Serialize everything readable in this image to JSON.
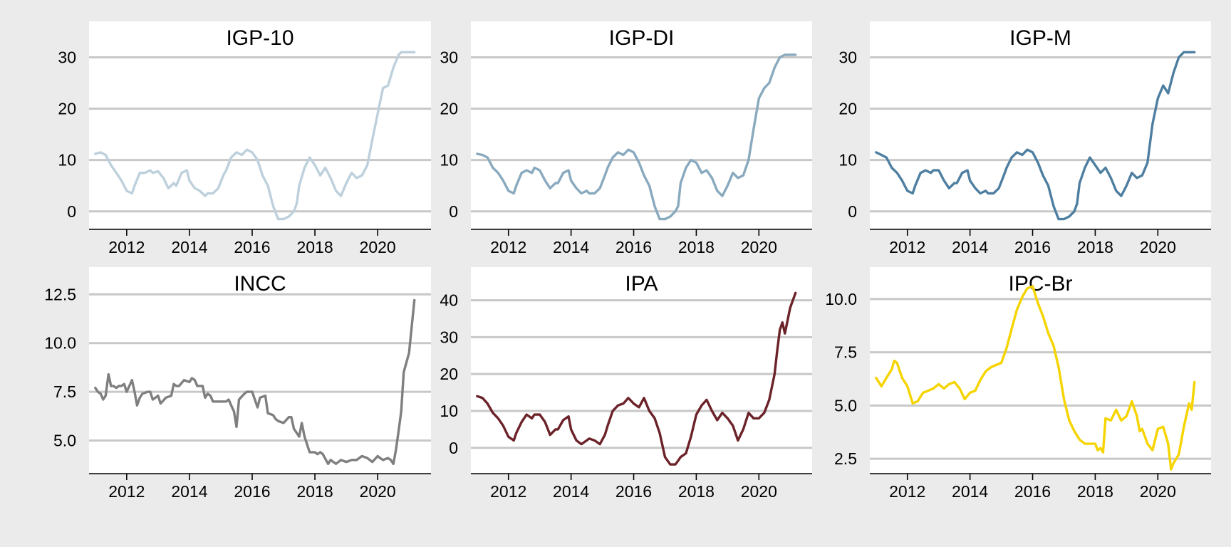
{
  "chart_data": {
    "type": "line",
    "x_range": [
      2010.8,
      2021.7
    ],
    "x_ticks": [
      2012,
      2014,
      2016,
      2018,
      2020
    ],
    "x_tick_labels": [
      "2012",
      "2014",
      "2016",
      "2018",
      "2020"
    ],
    "grid": "horizontal",
    "panels": [
      {
        "title": "IGP-10",
        "color": "#bdd0dc",
        "ylim": [
          -3.5,
          37
        ],
        "y_ticks": [
          0,
          10,
          20,
          30
        ],
        "y_tick_labels": [
          "0",
          "10",
          "20",
          "30"
        ],
        "series": {
          "x": [
            2011.0,
            2011.17,
            2011.33,
            2011.5,
            2011.67,
            2011.83,
            2012.0,
            2012.17,
            2012.25,
            2012.42,
            2012.58,
            2012.75,
            2012.83,
            2013.0,
            2013.17,
            2013.33,
            2013.5,
            2013.58,
            2013.75,
            2013.92,
            2014.0,
            2014.17,
            2014.33,
            2014.5,
            2014.58,
            2014.75,
            2014.92,
            2015.08,
            2015.17,
            2015.33,
            2015.5,
            2015.67,
            2015.83,
            2016.0,
            2016.17,
            2016.33,
            2016.5,
            2016.67,
            2016.83,
            2017.0,
            2017.17,
            2017.33,
            2017.42,
            2017.5,
            2017.67,
            2017.83,
            2018.0,
            2018.17,
            2018.33,
            2018.5,
            2018.67,
            2018.83,
            2019.0,
            2019.17,
            2019.33,
            2019.5,
            2019.67,
            2019.83,
            2020.0,
            2020.17,
            2020.33,
            2020.5,
            2020.67,
            2020.75,
            2020.83,
            2020.92,
            2021.0,
            2021.08,
            2021.17
          ],
          "y": [
            11.2,
            11.5,
            11.0,
            9.0,
            7.5,
            6.0,
            4.0,
            3.5,
            5.0,
            7.5,
            7.5,
            8.0,
            7.5,
            7.8,
            6.5,
            4.5,
            5.5,
            5.0,
            7.5,
            8.0,
            6.0,
            4.5,
            4.0,
            3.0,
            3.5,
            3.5,
            4.5,
            7.0,
            8.0,
            10.5,
            11.5,
            11.0,
            12.0,
            11.5,
            10.0,
            7.0,
            5.0,
            1.0,
            -1.5,
            -1.5,
            -1.0,
            0.0,
            1.5,
            5.0,
            8.5,
            10.5,
            9.0,
            7.0,
            8.5,
            6.5,
            4.0,
            3.0,
            5.5,
            7.5,
            6.5,
            7.0,
            9.0,
            14.0,
            19.0,
            24.0,
            24.5,
            28.0,
            30.5,
            31.0,
            31.0,
            31.0,
            31.0,
            31.0,
            31.0
          ]
        }
      },
      {
        "title": "IGP-DI",
        "color": "#89a9be",
        "ylim": [
          -3.5,
          37
        ],
        "y_ticks": [
          0,
          10,
          20,
          30
        ],
        "y_tick_labels": [
          "0",
          "10",
          "20",
          "30"
        ],
        "series": {
          "x": [
            2011.0,
            2011.17,
            2011.33,
            2011.5,
            2011.67,
            2011.83,
            2012.0,
            2012.17,
            2012.25,
            2012.42,
            2012.58,
            2012.75,
            2012.83,
            2013.0,
            2013.17,
            2013.33,
            2013.5,
            2013.58,
            2013.75,
            2013.92,
            2014.0,
            2014.17,
            2014.33,
            2014.5,
            2014.58,
            2014.75,
            2014.92,
            2015.08,
            2015.17,
            2015.33,
            2015.5,
            2015.67,
            2015.83,
            2016.0,
            2016.17,
            2016.33,
            2016.5,
            2016.67,
            2016.83,
            2017.0,
            2017.17,
            2017.33,
            2017.42,
            2017.5,
            2017.67,
            2017.83,
            2018.0,
            2018.17,
            2018.33,
            2018.5,
            2018.67,
            2018.83,
            2019.0,
            2019.17,
            2019.33,
            2019.5,
            2019.67,
            2019.83,
            2020.0,
            2020.17,
            2020.33,
            2020.5,
            2020.67,
            2020.83,
            2021.0,
            2021.17
          ],
          "y": [
            11.2,
            11.0,
            10.5,
            8.5,
            7.5,
            6.0,
            4.0,
            3.5,
            5.0,
            7.5,
            8.0,
            7.5,
            8.5,
            8.0,
            6.0,
            4.5,
            5.5,
            5.5,
            7.5,
            8.0,
            6.0,
            4.5,
            3.5,
            4.0,
            3.5,
            3.5,
            4.5,
            7.0,
            8.5,
            10.5,
            11.5,
            11.0,
            12.0,
            11.5,
            9.5,
            7.0,
            5.0,
            1.0,
            -1.5,
            -1.5,
            -1.0,
            0.0,
            1.0,
            5.5,
            8.5,
            10.0,
            9.5,
            7.5,
            8.0,
            6.5,
            4.0,
            3.0,
            5.0,
            7.5,
            6.5,
            7.0,
            10.0,
            16.0,
            22.0,
            24.0,
            25.0,
            28.0,
            30.0,
            30.5,
            30.5,
            30.5
          ]
        }
      },
      {
        "title": "IGP-M",
        "color": "#4e7ea0",
        "ylim": [
          -3.5,
          37
        ],
        "y_ticks": [
          0,
          10,
          20,
          30
        ],
        "y_tick_labels": [
          "0",
          "10",
          "20",
          "30"
        ],
        "series": {
          "x": [
            2011.0,
            2011.17,
            2011.33,
            2011.5,
            2011.67,
            2011.83,
            2012.0,
            2012.17,
            2012.25,
            2012.42,
            2012.58,
            2012.75,
            2012.83,
            2013.0,
            2013.17,
            2013.33,
            2013.5,
            2013.58,
            2013.75,
            2013.92,
            2014.0,
            2014.17,
            2014.33,
            2014.5,
            2014.58,
            2014.75,
            2014.92,
            2015.08,
            2015.17,
            2015.33,
            2015.5,
            2015.67,
            2015.83,
            2016.0,
            2016.17,
            2016.33,
            2016.5,
            2016.67,
            2016.83,
            2017.0,
            2017.17,
            2017.33,
            2017.42,
            2017.5,
            2017.67,
            2017.83,
            2018.0,
            2018.17,
            2018.33,
            2018.5,
            2018.67,
            2018.83,
            2019.0,
            2019.17,
            2019.33,
            2019.5,
            2019.67,
            2019.83,
            2020.0,
            2020.17,
            2020.33,
            2020.5,
            2020.67,
            2020.83,
            2021.0,
            2021.17
          ],
          "y": [
            11.5,
            11.0,
            10.5,
            8.5,
            7.5,
            6.0,
            4.0,
            3.5,
            5.0,
            7.5,
            8.0,
            7.5,
            8.0,
            8.0,
            6.0,
            4.5,
            5.5,
            5.5,
            7.5,
            8.0,
            6.0,
            4.5,
            3.5,
            4.0,
            3.5,
            3.5,
            4.5,
            7.0,
            8.5,
            10.5,
            11.5,
            11.0,
            12.0,
            11.5,
            9.5,
            7.0,
            5.0,
            1.0,
            -1.5,
            -1.5,
            -1.0,
            0.0,
            1.5,
            5.5,
            8.5,
            10.5,
            9.0,
            7.5,
            8.5,
            6.5,
            4.0,
            3.0,
            5.0,
            7.5,
            6.5,
            7.0,
            9.5,
            17.0,
            22.0,
            24.5,
            23.0,
            27.0,
            30.0,
            31.0,
            31.0,
            31.0
          ]
        }
      },
      {
        "title": "INCC",
        "color": "#7f7f7f",
        "ylim": [
          3.3,
          13.9
        ],
        "y_ticks": [
          5.0,
          7.5,
          10.0,
          12.5
        ],
        "y_tick_labels": [
          "5.0",
          "7.5",
          "10.0",
          "12.5"
        ],
        "series": {
          "x": [
            2011.0,
            2011.08,
            2011.17,
            2011.25,
            2011.33,
            2011.42,
            2011.5,
            2011.58,
            2011.67,
            2011.75,
            2011.83,
            2011.92,
            2012.0,
            2012.17,
            2012.25,
            2012.33,
            2012.42,
            2012.5,
            2012.67,
            2012.75,
            2012.83,
            2013.0,
            2013.08,
            2013.25,
            2013.42,
            2013.5,
            2013.58,
            2013.67,
            2013.83,
            2014.0,
            2014.08,
            2014.17,
            2014.25,
            2014.42,
            2014.5,
            2014.58,
            2014.67,
            2014.75,
            2015.0,
            2015.17,
            2015.25,
            2015.33,
            2015.42,
            2015.5,
            2015.58,
            2015.75,
            2015.83,
            2016.0,
            2016.17,
            2016.25,
            2016.42,
            2016.5,
            2016.67,
            2016.75,
            2016.83,
            2017.0,
            2017.17,
            2017.25,
            2017.33,
            2017.5,
            2017.58,
            2017.67,
            2017.83,
            2018.0,
            2018.08,
            2018.17,
            2018.25,
            2018.42,
            2018.5,
            2018.67,
            2018.83,
            2019.0,
            2019.17,
            2019.33,
            2019.5,
            2019.67,
            2019.75,
            2019.83,
            2020.0,
            2020.08,
            2020.17,
            2020.33,
            2020.42,
            2020.5,
            2020.58,
            2020.67,
            2020.75,
            2020.83,
            2021.0,
            2021.17
          ],
          "y": [
            7.7,
            7.5,
            7.4,
            7.1,
            7.3,
            8.4,
            7.8,
            7.8,
            7.7,
            7.8,
            7.8,
            7.9,
            7.5,
            8.1,
            7.5,
            6.8,
            7.2,
            7.4,
            7.5,
            7.5,
            7.1,
            7.3,
            6.9,
            7.2,
            7.3,
            7.9,
            7.8,
            7.8,
            8.1,
            8.0,
            8.2,
            8.1,
            7.8,
            7.8,
            7.2,
            7.4,
            7.3,
            7.0,
            7.0,
            7.0,
            7.1,
            6.8,
            6.5,
            5.7,
            7.1,
            7.4,
            7.5,
            7.5,
            6.7,
            7.2,
            7.3,
            6.4,
            6.3,
            6.1,
            6.0,
            5.9,
            6.2,
            6.2,
            5.6,
            5.2,
            5.9,
            5.2,
            4.4,
            4.4,
            4.3,
            4.4,
            4.3,
            3.8,
            4.0,
            3.8,
            4.0,
            3.9,
            4.0,
            4.0,
            4.2,
            4.1,
            4.0,
            3.9,
            4.2,
            4.1,
            4.0,
            4.1,
            4.0,
            3.8,
            4.5,
            5.5,
            6.5,
            8.5,
            9.5,
            12.2
          ]
        }
      },
      {
        "title": "IPA",
        "color": "#6b2229",
        "ylim": [
          -7,
          49
        ],
        "y_ticks": [
          0,
          10,
          20,
          30,
          40
        ],
        "y_tick_labels": [
          "0",
          "10",
          "20",
          "30",
          "40"
        ],
        "series": {
          "x": [
            2011.0,
            2011.17,
            2011.33,
            2011.5,
            2011.67,
            2011.83,
            2012.0,
            2012.17,
            2012.25,
            2012.42,
            2012.58,
            2012.75,
            2012.83,
            2013.0,
            2013.17,
            2013.33,
            2013.5,
            2013.58,
            2013.75,
            2013.92,
            2014.0,
            2014.17,
            2014.33,
            2014.5,
            2014.58,
            2014.75,
            2014.92,
            2015.08,
            2015.17,
            2015.33,
            2015.5,
            2015.67,
            2015.83,
            2016.0,
            2016.17,
            2016.33,
            2016.5,
            2016.67,
            2016.83,
            2017.0,
            2017.17,
            2017.33,
            2017.42,
            2017.5,
            2017.67,
            2017.83,
            2018.0,
            2018.17,
            2018.33,
            2018.5,
            2018.67,
            2018.83,
            2019.0,
            2019.17,
            2019.33,
            2019.5,
            2019.67,
            2019.83,
            2020.0,
            2020.17,
            2020.33,
            2020.5,
            2020.58,
            2020.67,
            2020.75,
            2020.83,
            2021.0,
            2021.17
          ],
          "y": [
            14.0,
            13.5,
            12.0,
            9.5,
            8.0,
            6.0,
            3.0,
            2.0,
            4.0,
            7.0,
            9.0,
            8.0,
            9.0,
            9.0,
            7.0,
            3.5,
            5.0,
            5.0,
            7.5,
            8.5,
            5.0,
            2.0,
            1.0,
            2.0,
            2.5,
            2.0,
            1.0,
            3.5,
            6.0,
            10.0,
            11.5,
            12.0,
            13.5,
            12.0,
            11.0,
            13.5,
            10.0,
            8.0,
            4.0,
            -2.5,
            -4.5,
            -4.5,
            -3.5,
            -2.5,
            -1.5,
            3.0,
            9.0,
            11.5,
            13.0,
            10.0,
            7.5,
            9.5,
            8.0,
            6.0,
            2.0,
            5.0,
            9.5,
            8.0,
            8.0,
            9.5,
            13.0,
            20.0,
            26.0,
            32.0,
            34.0,
            31.0,
            38.0,
            42.0
          ]
        }
      },
      {
        "title": "IPC-Br",
        "color": "#f5d400",
        "ylim": [
          1.8,
          11.5
        ],
        "y_ticks": [
          2.5,
          5.0,
          7.5,
          10.0
        ],
        "y_tick_labels": [
          "2.5",
          "5.0",
          "7.5",
          "10.0"
        ],
        "series": {
          "x": [
            2011.0,
            2011.17,
            2011.33,
            2011.5,
            2011.58,
            2011.67,
            2011.83,
            2012.0,
            2012.17,
            2012.33,
            2012.5,
            2012.67,
            2012.83,
            2013.0,
            2013.17,
            2013.33,
            2013.5,
            2013.67,
            2013.83,
            2014.0,
            2014.17,
            2014.33,
            2014.5,
            2014.67,
            2014.83,
            2015.0,
            2015.17,
            2015.33,
            2015.5,
            2015.67,
            2015.83,
            2016.0,
            2016.17,
            2016.33,
            2016.5,
            2016.67,
            2016.83,
            2017.0,
            2017.17,
            2017.33,
            2017.5,
            2017.67,
            2017.83,
            2018.0,
            2018.08,
            2018.17,
            2018.25,
            2018.33,
            2018.5,
            2018.67,
            2018.83,
            2019.0,
            2019.17,
            2019.33,
            2019.42,
            2019.5,
            2019.67,
            2019.83,
            2020.0,
            2020.17,
            2020.33,
            2020.42,
            2020.5,
            2020.67,
            2020.83,
            2021.0,
            2021.08,
            2021.17
          ],
          "y": [
            6.3,
            5.9,
            6.3,
            6.7,
            7.1,
            7.0,
            6.3,
            5.9,
            5.1,
            5.2,
            5.6,
            5.7,
            5.8,
            6.0,
            5.8,
            6.0,
            6.1,
            5.8,
            5.3,
            5.6,
            5.7,
            6.2,
            6.6,
            6.8,
            6.9,
            7.0,
            7.7,
            8.6,
            9.5,
            10.1,
            10.5,
            10.6,
            9.8,
            9.2,
            8.4,
            7.8,
            6.8,
            5.3,
            4.3,
            3.8,
            3.4,
            3.2,
            3.2,
            3.2,
            2.9,
            3.0,
            2.8,
            4.4,
            4.3,
            4.8,
            4.3,
            4.5,
            5.2,
            4.5,
            3.8,
            3.9,
            3.2,
            2.9,
            3.9,
            4.0,
            3.2,
            2.0,
            2.3,
            2.7,
            4.0,
            5.1,
            4.8,
            6.1
          ]
        }
      }
    ]
  }
}
